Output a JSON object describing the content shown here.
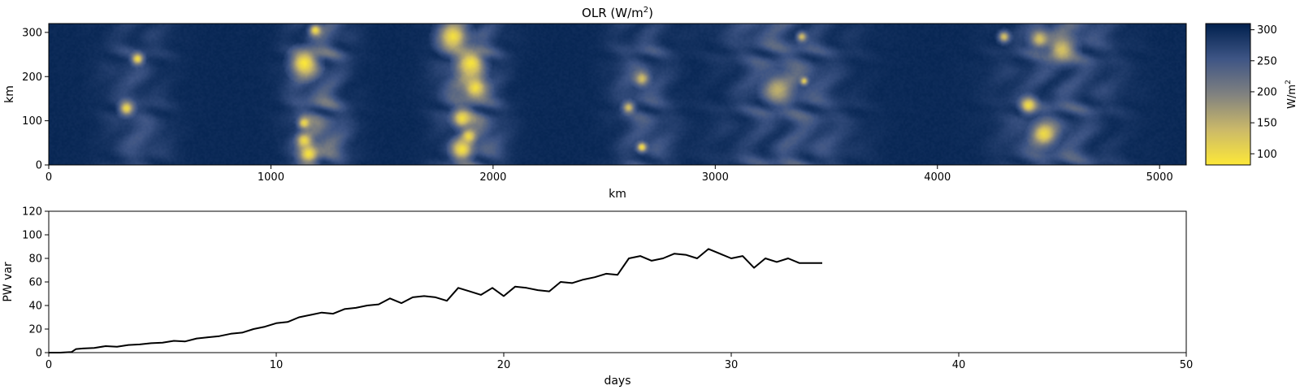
{
  "chart_data": [
    {
      "type": "heatmap",
      "title_main": "OLR (W/m",
      "title_sup": "2",
      "title_end": ")",
      "xlabel": "km",
      "ylabel": "km",
      "xlim": [
        0,
        5120
      ],
      "ylim": [
        0,
        320
      ],
      "x_ticks": [
        "0",
        "1000",
        "2000",
        "3000",
        "4000",
        "5000"
      ],
      "x_tick_values": [
        0,
        1000,
        2000,
        3000,
        4000,
        5000
      ],
      "y_ticks": [
        "0",
        "100",
        "200",
        "300"
      ],
      "y_tick_values": [
        0,
        100,
        200,
        300
      ],
      "colormap": "cividis_r",
      "colorbar": {
        "label_main": "W/m",
        "label_sup": "2",
        "range": [
          82,
          310
        ],
        "ticks": [
          "100",
          "150",
          "200",
          "250",
          "300"
        ],
        "tick_values": [
          100,
          150,
          200,
          250,
          300
        ]
      },
      "convective_bands_km": [
        {
          "center": 400,
          "halfwidth": 180,
          "strength": 0.35
        },
        {
          "center": 1220,
          "halfwidth": 160,
          "strength": 0.75
        },
        {
          "center": 1900,
          "halfwidth": 170,
          "strength": 0.75
        },
        {
          "center": 2680,
          "halfwidth": 170,
          "strength": 0.45
        },
        {
          "center": 3320,
          "halfwidth": 330,
          "strength": 0.55
        },
        {
          "center": 4550,
          "halfwidth": 300,
          "strength": 0.55
        }
      ],
      "cold_cells": [
        {
          "x": 400,
          "y": 240,
          "r": 18,
          "olr": 95
        },
        {
          "x": 350,
          "y": 128,
          "r": 22,
          "olr": 100
        },
        {
          "x": 1150,
          "y": 230,
          "r": 40,
          "olr": 85
        },
        {
          "x": 1200,
          "y": 305,
          "r": 18,
          "olr": 95
        },
        {
          "x": 1150,
          "y": 95,
          "r": 18,
          "olr": 100
        },
        {
          "x": 1150,
          "y": 55,
          "r": 22,
          "olr": 100
        },
        {
          "x": 1170,
          "y": 25,
          "r": 30,
          "olr": 90
        },
        {
          "x": 1820,
          "y": 290,
          "r": 45,
          "olr": 95
        },
        {
          "x": 1900,
          "y": 230,
          "r": 40,
          "olr": 90
        },
        {
          "x": 1920,
          "y": 175,
          "r": 35,
          "olr": 95
        },
        {
          "x": 1860,
          "y": 105,
          "r": 28,
          "olr": 95
        },
        {
          "x": 1860,
          "y": 35,
          "r": 30,
          "olr": 90
        },
        {
          "x": 1890,
          "y": 65,
          "r": 20,
          "olr": 100
        },
        {
          "x": 2670,
          "y": 195,
          "r": 22,
          "olr": 130
        },
        {
          "x": 2610,
          "y": 130,
          "r": 18,
          "olr": 130
        },
        {
          "x": 2670,
          "y": 40,
          "r": 15,
          "olr": 90
        },
        {
          "x": 3280,
          "y": 170,
          "r": 40,
          "olr": 150
        },
        {
          "x": 3390,
          "y": 290,
          "r": 15,
          "olr": 130
        },
        {
          "x": 3400,
          "y": 190,
          "r": 12,
          "olr": 110
        },
        {
          "x": 4300,
          "y": 290,
          "r": 18,
          "olr": 125
        },
        {
          "x": 4410,
          "y": 135,
          "r": 25,
          "olr": 95
        },
        {
          "x": 4480,
          "y": 70,
          "r": 35,
          "olr": 100
        },
        {
          "x": 4560,
          "y": 260,
          "r": 40,
          "olr": 130
        },
        {
          "x": 4460,
          "y": 285,
          "r": 30,
          "olr": 130
        }
      ]
    },
    {
      "type": "line",
      "xlabel": "days",
      "ylabel": "PW var",
      "xlim": [
        0,
        50
      ],
      "ylim": [
        0,
        120
      ],
      "x_ticks": [
        "0",
        "10",
        "20",
        "30",
        "40",
        "50"
      ],
      "x_tick_values": [
        0,
        10,
        20,
        30,
        40,
        50
      ],
      "y_ticks": [
        "0",
        "20",
        "40",
        "60",
        "80",
        "100",
        "120"
      ],
      "y_tick_values": [
        0,
        20,
        40,
        60,
        80,
        100,
        120
      ],
      "series": [
        {
          "x": [
            0,
            0.5,
            1.0,
            1.2,
            1.5,
            2.0,
            2.5,
            3.0,
            3.5,
            4.0,
            4.5,
            5.0,
            5.5,
            6.0,
            6.5,
            7.0,
            7.5,
            8.0,
            8.5,
            9.0,
            9.5,
            10.0,
            10.5,
            11.0,
            11.5,
            12.0,
            12.5,
            13.0,
            13.5,
            14.0,
            14.5,
            15.0,
            15.5,
            16.0,
            16.5,
            17.0,
            17.5,
            18.0,
            18.5,
            19.0,
            19.5,
            20.0,
            20.5,
            21.0,
            21.5,
            22.0,
            22.5,
            23.0,
            23.5,
            24.0,
            24.5,
            25.0,
            25.5,
            26.0,
            26.5,
            27.0,
            27.5,
            28.0,
            28.5,
            29.0,
            29.5,
            30.0,
            30.5,
            31.0,
            31.5,
            32.0,
            32.5,
            33.0,
            33.5,
            34.0
          ],
          "values": [
            0,
            0,
            0.5,
            3,
            3.5,
            4,
            5.5,
            5,
            6.5,
            7,
            8,
            8.5,
            10,
            9.5,
            12,
            13,
            14,
            16,
            17,
            20,
            22,
            25,
            26,
            30,
            32,
            34,
            33,
            37,
            38,
            40,
            41,
            46,
            42,
            47,
            48,
            47,
            44,
            55,
            52,
            49,
            55,
            48,
            56,
            55,
            53,
            52,
            60,
            59,
            62,
            64,
            67,
            66,
            80,
            82,
            78,
            80,
            84,
            83,
            80,
            88,
            84,
            80,
            82,
            72,
            80,
            77,
            80,
            76,
            76,
            76
          ]
        }
      ]
    }
  ]
}
